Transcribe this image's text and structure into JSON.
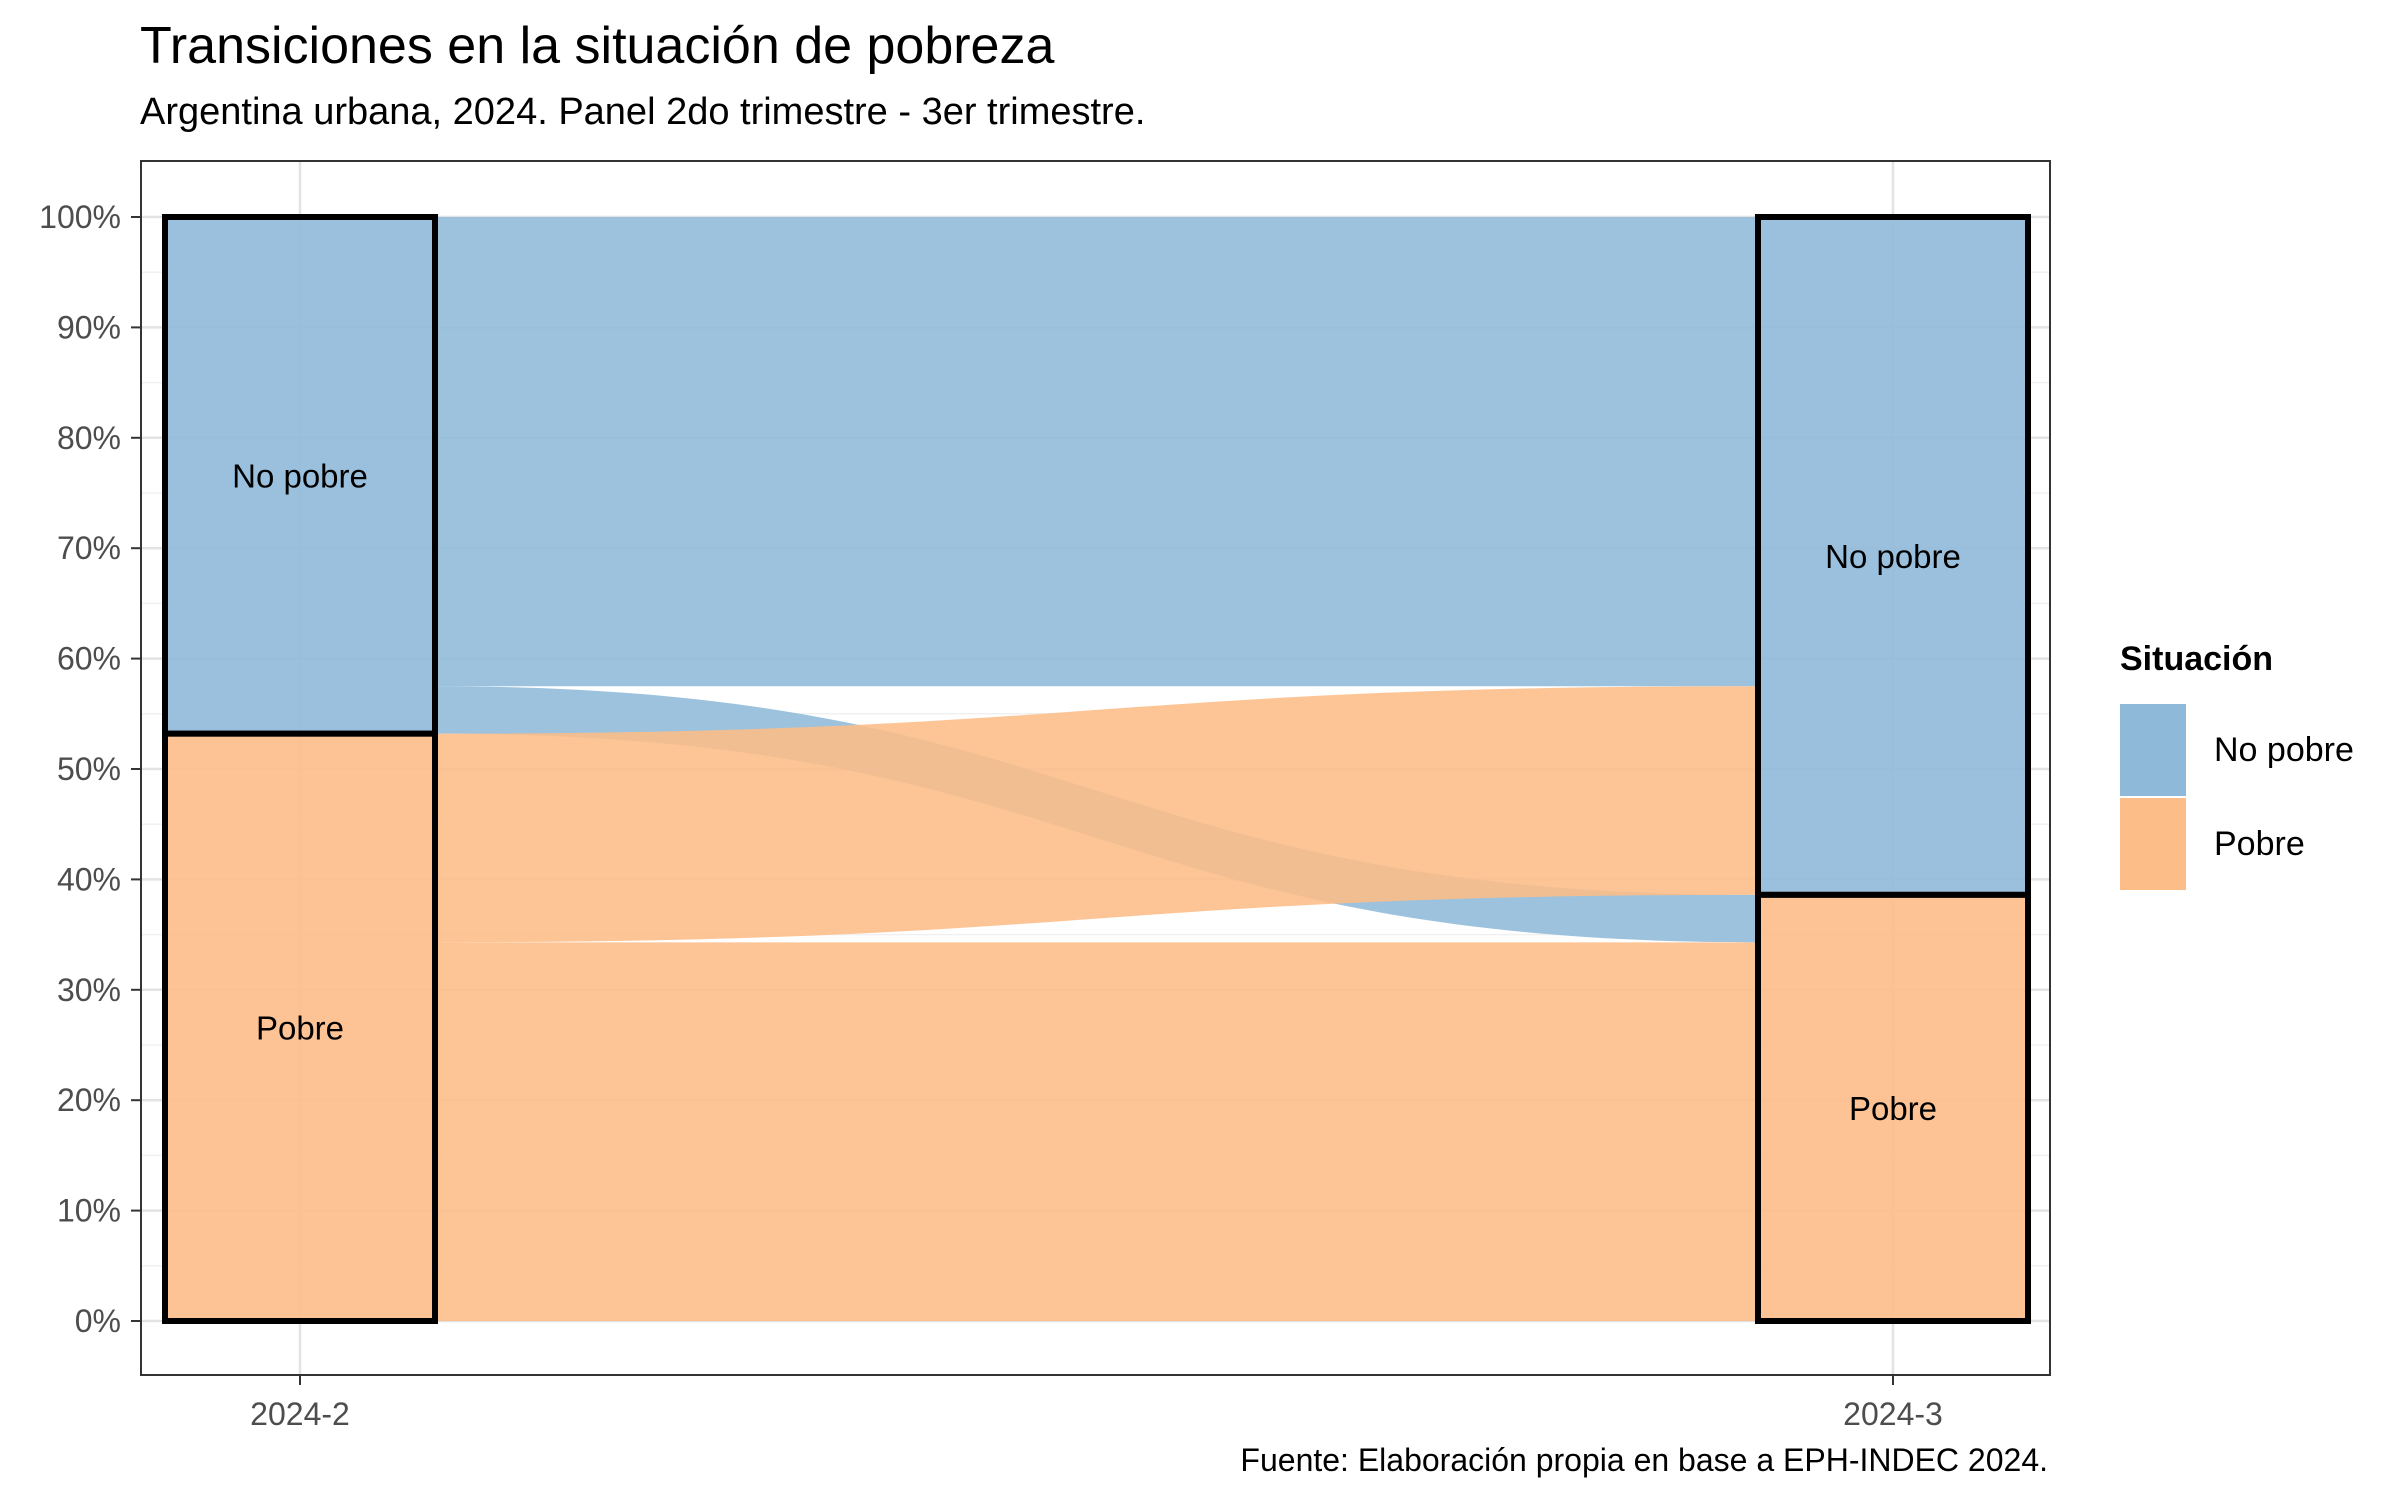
{
  "title": "Transiciones en la situación de pobreza",
  "subtitle": "Argentina urbana, 2024. Panel 2do trimestre - 3er trimestre.",
  "caption": "Fuente: Elaboración propia en base a EPH-INDEC 2024.",
  "legend": {
    "title": "Situación",
    "items": [
      {
        "label": "No pobre",
        "color": "#8fb9d9"
      },
      {
        "label": "Pobre",
        "color": "#fdbd88"
      }
    ]
  },
  "chart_data": {
    "type": "alluvial",
    "title": "Transiciones en la situación de pobreza",
    "subtitle": "Argentina urbana, 2024. Panel 2do trimestre - 3er trimestre.",
    "xlabel": "",
    "ylabel": "",
    "ylim": [
      0,
      100
    ],
    "y_ticks": [
      "0%",
      "10%",
      "20%",
      "30%",
      "40%",
      "50%",
      "60%",
      "70%",
      "80%",
      "90%",
      "100%"
    ],
    "categories": [
      "2024-2",
      "2024-3"
    ],
    "strata_order": [
      "No pobre",
      "Pobre"
    ],
    "strata": [
      {
        "axis": "2024-2",
        "label": "No pobre",
        "value": 46.8
      },
      {
        "axis": "2024-2",
        "label": "Pobre",
        "value": 53.2
      },
      {
        "axis": "2024-3",
        "label": "No pobre",
        "value": 61.4
      },
      {
        "axis": "2024-3",
        "label": "Pobre",
        "value": 38.6
      }
    ],
    "flows": [
      {
        "from": "No pobre",
        "to": "No pobre",
        "value": 42.5
      },
      {
        "from": "No pobre",
        "to": "Pobre",
        "value": 4.3
      },
      {
        "from": "Pobre",
        "to": "No pobre",
        "value": 18.9
      },
      {
        "from": "Pobre",
        "to": "Pobre",
        "value": 34.3
      }
    ],
    "colors": {
      "No pobre": "#8fb9d9",
      "Pobre": "#fdbd88"
    },
    "grid": true,
    "legend_position": "right"
  }
}
